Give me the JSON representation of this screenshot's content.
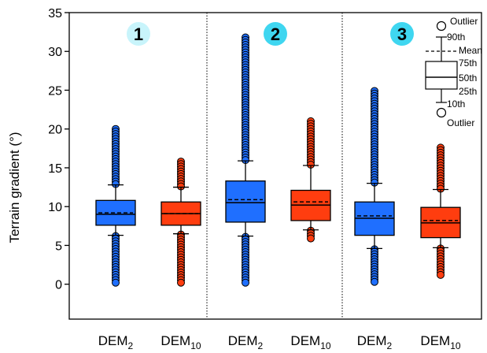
{
  "chart_data": {
    "type": "box",
    "ylabel": "Terrain gradient (°)",
    "ylim": [
      -4.5,
      35
    ],
    "yticks": [
      0,
      5,
      10,
      15,
      20,
      25,
      30,
      35
    ],
    "grid": false,
    "colors": {
      "DEM2": "#1f6fff",
      "DEM10": "#ff3d0f",
      "badge": "#3fd6f0",
      "badge_light": "#c8f4fb"
    },
    "category_labels": [
      {
        "base": "DEM",
        "sub": "2"
      },
      {
        "base": "DEM",
        "sub": "10"
      },
      {
        "base": "DEM",
        "sub": "2"
      },
      {
        "base": "DEM",
        "sub": "10"
      },
      {
        "base": "DEM",
        "sub": "2"
      },
      {
        "base": "DEM",
        "sub": "10"
      }
    ],
    "panels": [
      {
        "label": "1",
        "badge": "badge_light"
      },
      {
        "label": "2",
        "badge": "badge"
      },
      {
        "label": "3",
        "badge": "badge"
      }
    ],
    "boxes": [
      {
        "panel": 0,
        "color": "DEM2",
        "p10": 6.3,
        "p25": 7.6,
        "median": 9.0,
        "mean": 9.2,
        "p75": 10.8,
        "p90": 12.8,
        "outliers_low": [
          0.2,
          6.2
        ],
        "outliers_high": [
          12.9,
          20.0
        ]
      },
      {
        "panel": 0,
        "color": "DEM10",
        "p10": 6.5,
        "p25": 7.6,
        "median": 9.1,
        "mean": 9.1,
        "p75": 10.6,
        "p90": 12.5,
        "outliers_low": [
          0.2,
          6.4
        ],
        "outliers_high": [
          12.6,
          15.8
        ]
      },
      {
        "panel": 1,
        "color": "DEM2",
        "p10": 6.2,
        "p25": 8.0,
        "median": 10.5,
        "mean": 10.9,
        "p75": 13.3,
        "p90": 15.9,
        "outliers_low": [
          0.2,
          6.1
        ],
        "outliers_high": [
          16.0,
          31.8
        ]
      },
      {
        "panel": 1,
        "color": "DEM10",
        "p10": 7.0,
        "p25": 8.2,
        "median": 10.2,
        "mean": 10.6,
        "p75": 12.1,
        "p90": 15.3,
        "outliers_low": [
          5.9,
          6.9
        ],
        "outliers_high": [
          15.4,
          21.0
        ]
      },
      {
        "panel": 2,
        "color": "DEM2",
        "p10": 4.6,
        "p25": 6.3,
        "median": 8.5,
        "mean": 8.8,
        "p75": 10.6,
        "p90": 13.0,
        "outliers_low": [
          0.3,
          4.5
        ],
        "outliers_high": [
          13.1,
          24.9
        ]
      },
      {
        "panel": 2,
        "color": "DEM10",
        "p10": 4.7,
        "p25": 6.0,
        "median": 7.9,
        "mean": 8.2,
        "p75": 9.9,
        "p90": 12.2,
        "outliers_low": [
          1.2,
          4.6
        ],
        "outliers_high": [
          12.3,
          17.6
        ]
      }
    ],
    "legend": {
      "placement": "top-right",
      "labels": [
        "Outlier",
        "90th",
        "Mean",
        "75th",
        "50th",
        "25th",
        "10th",
        "Outlier"
      ]
    }
  }
}
